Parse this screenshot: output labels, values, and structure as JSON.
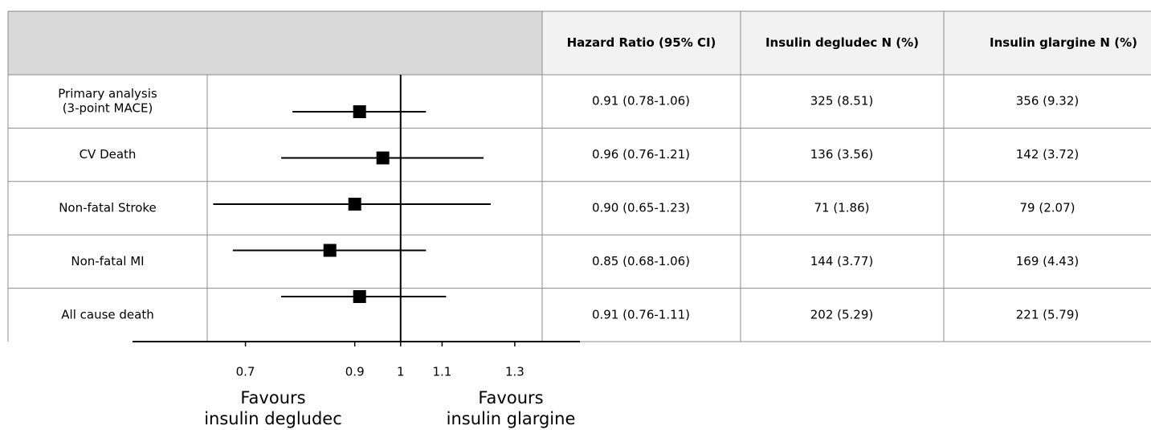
{
  "chart_data": {
    "type": "forest",
    "columns": [
      "Hazard Ratio (95% CI)",
      "Insulin degludec N (%)",
      "Insulin glargine N (%)"
    ],
    "rows": [
      {
        "label": [
          "Primary analysis",
          "(3-point MACE)"
        ],
        "hr": "0.91 (0.78-1.06)",
        "degludec": "325 (8.51)",
        "glargine": "356 (9.32)",
        "estimate": 0.91,
        "lower": 0.78,
        "upper": 1.06
      },
      {
        "label": [
          "CV Death"
        ],
        "hr": "0.96 (0.76-1.21)",
        "degludec": "136 (3.56)",
        "glargine": "142 (3.72)",
        "estimate": 0.96,
        "lower": 0.76,
        "upper": 1.21
      },
      {
        "label": [
          "Non-fatal Stroke"
        ],
        "hr": "0.90 (0.65-1.23)",
        "degludec": "71 (1.86)",
        "glargine": "79 (2.07)",
        "estimate": 0.9,
        "lower": 0.65,
        "upper": 1.23
      },
      {
        "label": [
          "Non-fatal MI"
        ],
        "hr": "0.85 (0.68-1.06)",
        "degludec": "144 (3.77)",
        "glargine": "169 (4.43)",
        "estimate": 0.85,
        "lower": 0.68,
        "upper": 1.06
      },
      {
        "label": [
          "All cause death"
        ],
        "hr": "0.91 (0.76-1.11)",
        "degludec": "202 (5.29)",
        "glargine": "221 (5.79)",
        "estimate": 0.91,
        "lower": 0.76,
        "upper": 1.11
      }
    ],
    "xscale": "log",
    "xlim": [
      0.54,
      1.51
    ],
    "xticks": [
      0.7,
      0.9,
      1,
      1.1,
      1.3
    ],
    "reference_line": 1,
    "favours_left": [
      "Favours",
      "insulin degludec"
    ],
    "favours_right": [
      "Favours",
      "insulin glargine"
    ],
    "marker_color": "#000000"
  }
}
